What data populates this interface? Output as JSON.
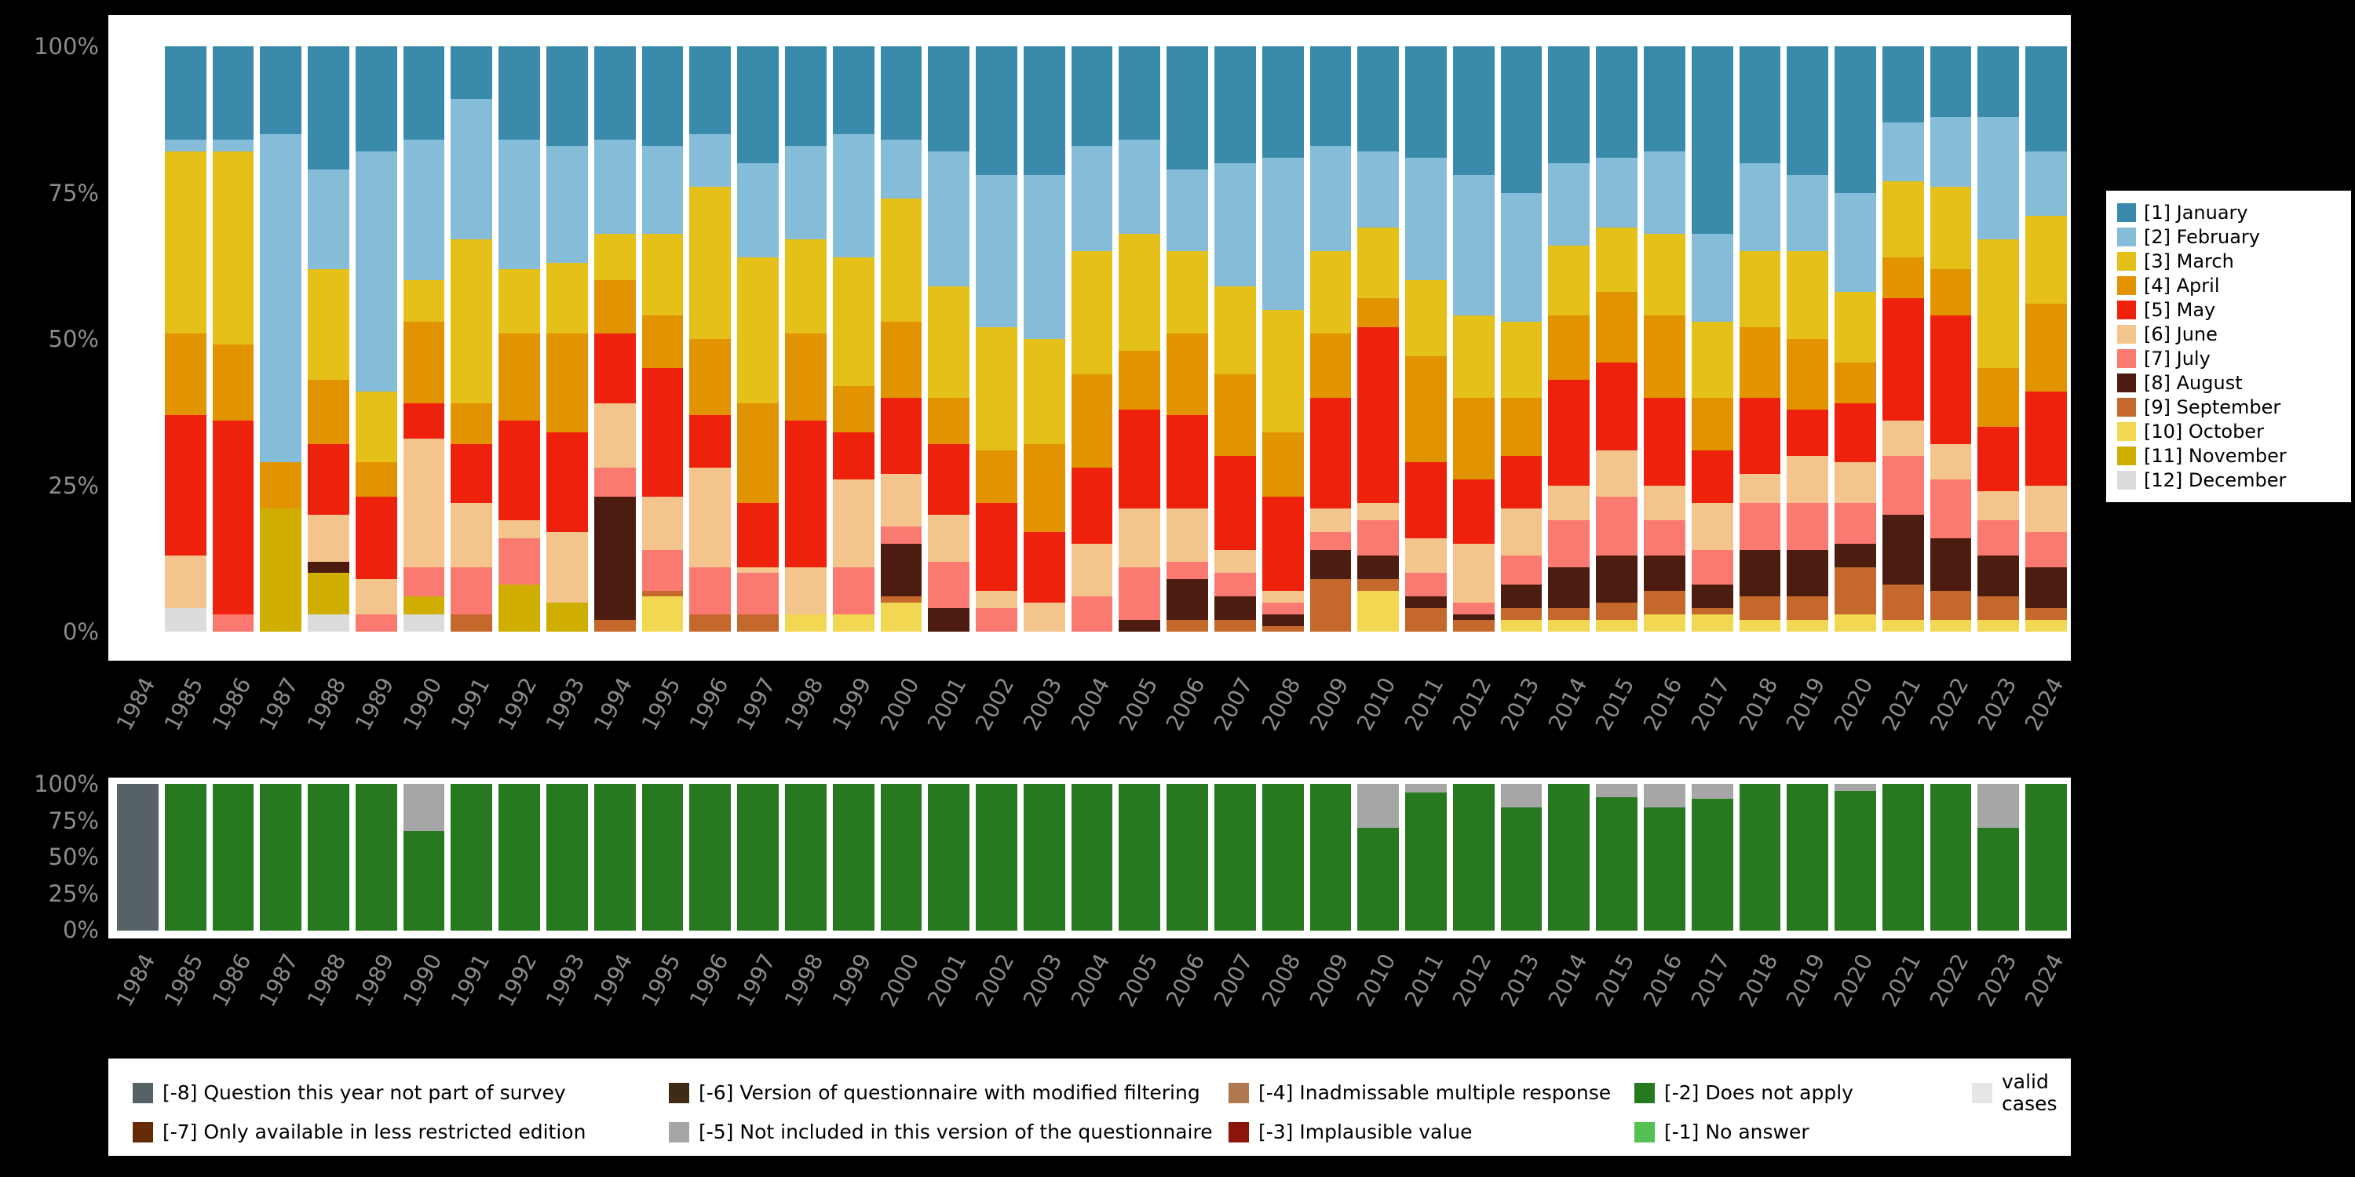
{
  "page": {
    "background": "#000000",
    "panel": "#ffffff",
    "tick_color": "#8b8b8b"
  },
  "axes": {
    "y_ticks": [
      "100%",
      "75%",
      "50%",
      "25%",
      "0%"
    ]
  },
  "years": [
    "1984",
    "1985",
    "1986",
    "1987",
    "1988",
    "1989",
    "1990",
    "1991",
    "1992",
    "1993",
    "1994",
    "1995",
    "1996",
    "1997",
    "1998",
    "1999",
    "2000",
    "2001",
    "2002",
    "2003",
    "2004",
    "2005",
    "2006",
    "2007",
    "2008",
    "2009",
    "2010",
    "2011",
    "2012",
    "2013",
    "2014",
    "2015",
    "2016",
    "2017",
    "2018",
    "2019",
    "2020",
    "2021",
    "2022",
    "2023",
    "2024"
  ],
  "chart_data": [
    {
      "id": "interview-month-by-year",
      "type": "bar",
      "stacked": true,
      "unit": "percent",
      "ylim": [
        0,
        100
      ],
      "y_ticks": [
        "0%",
        "25%",
        "50%",
        "75%",
        "100%"
      ],
      "legend_position": "right",
      "grid": false,
      "categories": [
        "1984",
        "1985",
        "1986",
        "1987",
        "1988",
        "1989",
        "1990",
        "1991",
        "1992",
        "1993",
        "1994",
        "1995",
        "1996",
        "1997",
        "1998",
        "1999",
        "2000",
        "2001",
        "2002",
        "2003",
        "2004",
        "2005",
        "2006",
        "2007",
        "2008",
        "2009",
        "2010",
        "2011",
        "2012",
        "2013",
        "2014",
        "2015",
        "2016",
        "2017",
        "2018",
        "2019",
        "2020",
        "2021",
        "2022",
        "2023",
        "2024"
      ],
      "series": [
        {
          "name": "[1] January",
          "color": "#3a8bab",
          "values": [
            0,
            16,
            16,
            15,
            21,
            18,
            16,
            9,
            16,
            17,
            16,
            17,
            15,
            20,
            17,
            15,
            16,
            18,
            22,
            22,
            17,
            16,
            21,
            20,
            19,
            17,
            18,
            19,
            22,
            25,
            20,
            19,
            18,
            32,
            20,
            22,
            25,
            13,
            12,
            12,
            18
          ]
        },
        {
          "name": "[2] February",
          "color": "#85bdd9",
          "values": [
            0,
            2,
            2,
            56,
            17,
            41,
            24,
            24,
            22,
            20,
            16,
            15,
            9,
            16,
            16,
            21,
            10,
            23,
            26,
            28,
            18,
            16,
            14,
            21,
            26,
            18,
            13,
            21,
            24,
            22,
            14,
            12,
            14,
            15,
            15,
            13,
            17,
            10,
            12,
            21,
            11
          ]
        },
        {
          "name": "[3] March",
          "color": "#e4c019",
          "values": [
            0,
            31,
            33,
            0,
            19,
            12,
            7,
            28,
            11,
            12,
            8,
            14,
            26,
            25,
            16,
            22,
            21,
            19,
            21,
            18,
            21,
            20,
            14,
            15,
            21,
            14,
            12,
            13,
            14,
            13,
            12,
            11,
            14,
            13,
            13,
            15,
            12,
            13,
            14,
            22,
            15
          ]
        },
        {
          "name": "[4] April",
          "color": "#e29400",
          "values": [
            0,
            14,
            13,
            8,
            11,
            6,
            14,
            7,
            15,
            17,
            9,
            9,
            13,
            17,
            15,
            8,
            13,
            8,
            9,
            15,
            16,
            10,
            14,
            14,
            11,
            11,
            5,
            18,
            14,
            10,
            11,
            12,
            14,
            9,
            12,
            12,
            7,
            7,
            8,
            10,
            15
          ]
        },
        {
          "name": "[5] May",
          "color": "#ee220c",
          "values": [
            0,
            24,
            33,
            0,
            12,
            14,
            6,
            10,
            17,
            17,
            12,
            22,
            9,
            11,
            25,
            8,
            13,
            12,
            15,
            12,
            13,
            17,
            16,
            16,
            16,
            19,
            30,
            13,
            11,
            9,
            18,
            15,
            15,
            9,
            13,
            8,
            10,
            21,
            22,
            11,
            16
          ]
        },
        {
          "name": "[6] June",
          "color": "#f4c48d",
          "values": [
            0,
            9,
            0,
            0,
            8,
            6,
            22,
            11,
            3,
            12,
            11,
            9,
            17,
            1,
            8,
            15,
            9,
            8,
            3,
            5,
            9,
            10,
            9,
            4,
            2,
            4,
            3,
            6,
            10,
            8,
            6,
            8,
            6,
            8,
            5,
            8,
            7,
            6,
            6,
            5,
            8
          ]
        },
        {
          "name": "[7] July",
          "color": "#fa7a72",
          "values": [
            0,
            0,
            3,
            0,
            0,
            3,
            5,
            8,
            8,
            0,
            5,
            7,
            8,
            7,
            0,
            8,
            3,
            8,
            4,
            0,
            6,
            9,
            3,
            4,
            2,
            3,
            6,
            4,
            2,
            5,
            8,
            10,
            6,
            6,
            8,
            8,
            7,
            10,
            10,
            6,
            6
          ]
        },
        {
          "name": "[8] August",
          "color": "#4d1c10",
          "values": [
            0,
            0,
            0,
            0,
            2,
            0,
            0,
            0,
            0,
            0,
            21,
            0,
            0,
            0,
            0,
            0,
            9,
            4,
            0,
            0,
            0,
            2,
            7,
            4,
            2,
            5,
            4,
            2,
            1,
            4,
            7,
            8,
            6,
            4,
            8,
            8,
            4,
            12,
            9,
            7,
            7
          ]
        },
        {
          "name": "[9] September",
          "color": "#c4682b",
          "values": [
            0,
            0,
            0,
            0,
            0,
            0,
            0,
            3,
            0,
            0,
            2,
            1,
            3,
            3,
            0,
            0,
            1,
            0,
            0,
            0,
            0,
            0,
            2,
            2,
            1,
            9,
            2,
            4,
            2,
            2,
            2,
            3,
            4,
            1,
            4,
            4,
            8,
            6,
            5,
            4,
            2
          ]
        },
        {
          "name": "[10] October",
          "color": "#f2d852",
          "values": [
            0,
            0,
            0,
            0,
            0,
            0,
            0,
            0,
            0,
            0,
            0,
            6,
            0,
            0,
            3,
            3,
            5,
            0,
            0,
            0,
            0,
            0,
            0,
            0,
            0,
            0,
            7,
            0,
            0,
            2,
            2,
            2,
            3,
            3,
            2,
            2,
            3,
            2,
            2,
            2,
            2
          ]
        },
        {
          "name": "[11] November",
          "color": "#cfae00",
          "values": [
            0,
            0,
            0,
            21,
            7,
            0,
            3,
            0,
            8,
            5,
            0,
            0,
            0,
            0,
            0,
            0,
            0,
            0,
            0,
            0,
            0,
            0,
            0,
            0,
            0,
            0,
            0,
            0,
            0,
            0,
            0,
            0,
            0,
            0,
            0,
            0,
            0,
            0,
            0,
            0,
            0
          ]
        },
        {
          "name": "[12] December",
          "color": "#dcdcdc",
          "values": [
            0,
            4,
            0,
            0,
            3,
            0,
            3,
            0,
            0,
            0,
            0,
            0,
            0,
            0,
            0,
            0,
            0,
            0,
            0,
            0,
            0,
            0,
            0,
            0,
            0,
            0,
            0,
            0,
            0,
            0,
            0,
            0,
            0,
            0,
            0,
            0,
            0,
            0,
            0,
            0,
            0
          ]
        }
      ]
    },
    {
      "id": "missing-values-by-year",
      "type": "bar",
      "stacked": true,
      "unit": "percent",
      "ylim": [
        0,
        100
      ],
      "y_ticks": [
        "0%",
        "25%",
        "50%",
        "75%",
        "100%"
      ],
      "grid": false,
      "categories": [
        "1984",
        "1985",
        "1986",
        "1987",
        "1988",
        "1989",
        "1990",
        "1991",
        "1992",
        "1993",
        "1994",
        "1995",
        "1996",
        "1997",
        "1998",
        "1999",
        "2000",
        "2001",
        "2002",
        "2003",
        "2004",
        "2005",
        "2006",
        "2007",
        "2008",
        "2009",
        "2010",
        "2011",
        "2012",
        "2013",
        "2014",
        "2015",
        "2016",
        "2017",
        "2018",
        "2019",
        "2020",
        "2021",
        "2022",
        "2023",
        "2024"
      ],
      "series": [
        {
          "name": "[-5] Not included in this version of the questionnaire",
          "color": "#a6a6a6",
          "values": [
            0,
            0,
            0,
            0,
            0,
            0,
            32,
            0,
            0,
            0,
            0,
            0,
            0,
            0,
            0,
            0,
            0,
            0,
            0,
            0,
            0,
            0,
            0,
            0,
            0,
            0,
            30,
            6,
            0,
            16,
            0,
            9,
            16,
            10,
            0,
            0,
            5,
            0,
            0,
            30,
            0
          ]
        },
        {
          "name": "[-8] Question this year not part of survey",
          "color": "#566266",
          "values": [
            100,
            0,
            0,
            0,
            0,
            0,
            0,
            0,
            0,
            0,
            0,
            0,
            0,
            0,
            0,
            0,
            0,
            0,
            0,
            0,
            0,
            0,
            0,
            0,
            0,
            0,
            0,
            0,
            0,
            0,
            0,
            0,
            0,
            0,
            0,
            0,
            0,
            0,
            0,
            0,
            0
          ]
        },
        {
          "name": "[-2] Does not apply",
          "color": "#26791e",
          "values": [
            0,
            100,
            100,
            100,
            100,
            100,
            68,
            100,
            100,
            100,
            100,
            100,
            100,
            100,
            100,
            100,
            100,
            100,
            100,
            100,
            100,
            100,
            100,
            100,
            100,
            100,
            70,
            94,
            100,
            84,
            100,
            91,
            84,
            90,
            100,
            100,
            95,
            100,
            100,
            70,
            100
          ]
        }
      ]
    }
  ],
  "month_legend": {
    "items": [
      {
        "label": "[1] January",
        "color": "#3a8bab"
      },
      {
        "label": "[2] February",
        "color": "#85bdd9"
      },
      {
        "label": "[3] March",
        "color": "#e4c019"
      },
      {
        "label": "[4] April",
        "color": "#e29400"
      },
      {
        "label": "[5] May",
        "color": "#ee220c"
      },
      {
        "label": "[6] June",
        "color": "#f4c48d"
      },
      {
        "label": "[7] July",
        "color": "#fa7a72"
      },
      {
        "label": "[8] August",
        "color": "#4d1c10"
      },
      {
        "label": "[9] September",
        "color": "#c4682b"
      },
      {
        "label": "[10] October",
        "color": "#f2d852"
      },
      {
        "label": "[11] November",
        "color": "#cfae00"
      },
      {
        "label": "[12] December",
        "color": "#dcdcdc"
      }
    ]
  },
  "bottom_legend": {
    "items": [
      {
        "label": "[-8] Question this year not part of survey",
        "color": "#566266"
      },
      {
        "label": "[-6] Version of questionnaire with modified filtering",
        "color": "#3e2a15"
      },
      {
        "label": "[-4] Inadmissable multiple response",
        "color": "#b07950"
      },
      {
        "label": "[-2] Does not apply",
        "color": "#26791e"
      },
      {
        "label": "valid cases",
        "color": "#e6e6e6"
      },
      {
        "label": "[-7] Only available in less restricted edition",
        "color": "#652b07"
      },
      {
        "label": "[-5] Not included in this version of the questionnaire",
        "color": "#a6a6a6"
      },
      {
        "label": "[-3] Implausible value",
        "color": "#8c150b"
      },
      {
        "label": "[-1] No answer",
        "color": "#52c152"
      }
    ]
  }
}
